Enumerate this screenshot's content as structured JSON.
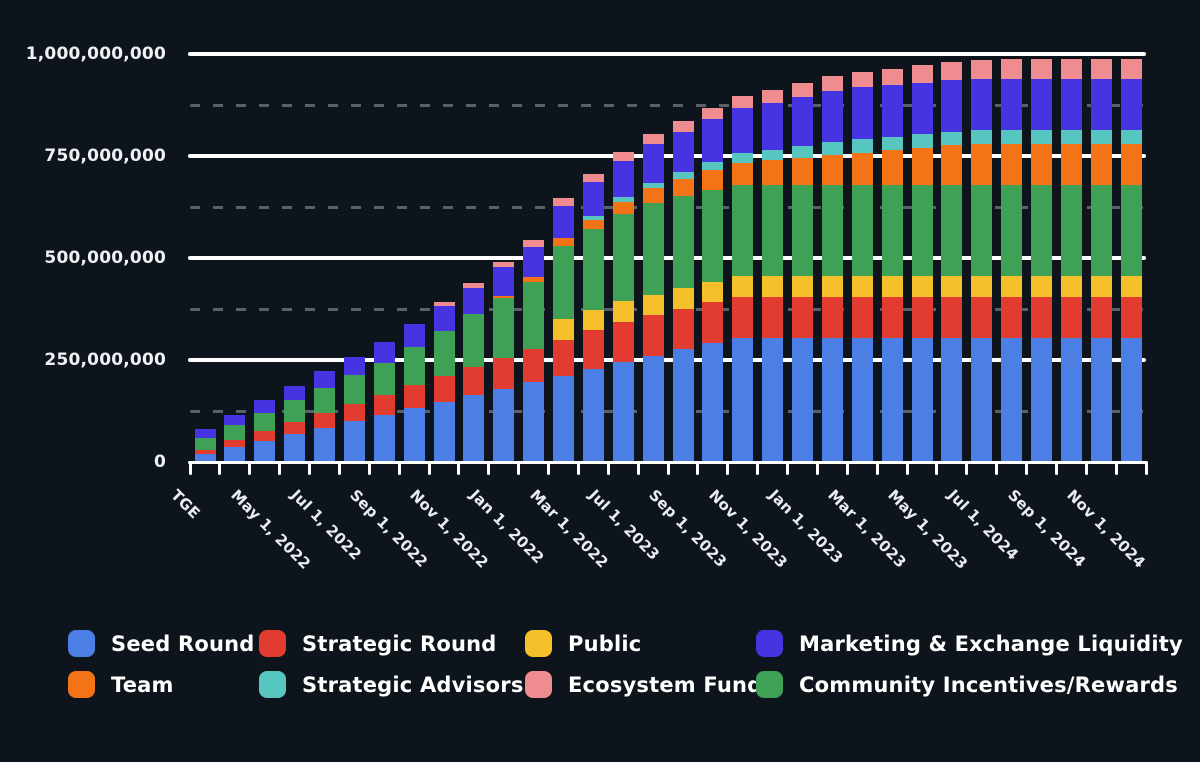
{
  "chart_data": {
    "type": "bar",
    "stacked": true,
    "title": "",
    "unit": "tokens (values in millions)",
    "bar_count": 32,
    "ylim": [
      0,
      1000000000
    ],
    "grid": "horizontal solid lines every 250M, dashed lines every 125M offset",
    "legend_position": "bottom",
    "y_ticks": [
      {
        "label": "0",
        "value_m": 0
      },
      {
        "label": "250,000,000",
        "value_m": 250
      },
      {
        "label": "500,000,000",
        "value_m": 500
      },
      {
        "label": "750,000,000",
        "value_m": 750
      },
      {
        "label": "1,000,000,000",
        "value_m": 1000
      }
    ],
    "y_solid_gridlines_m": [
      250,
      500,
      750,
      1000
    ],
    "y_dashed_gridlines_m": [
      125,
      375,
      625,
      875
    ],
    "x_tick_labels": [
      "TGE",
      "May 1, 2022",
      "Jul 1, 2022",
      "Sep 1, 2022",
      "Nov 1, 2022",
      "Jan 1, 2022",
      "Mar 1, 2022",
      "Jul 1, 2023",
      "Sep 1, 2023",
      "Nov 1, 2023",
      "Jan 1, 2023",
      "Mar 1, 2023",
      "May 1, 2023",
      "Jul 1, 2024",
      "Sep 1, 2024",
      "Nov 1, 2024"
    ],
    "x_label_every_n_bars": 2,
    "series": [
      {
        "name": "Seed Round",
        "color": "#4c7fe6",
        "values_m": [
          20,
          36,
          52,
          68,
          84,
          100,
          116,
          132,
          148,
          164,
          180,
          196,
          212,
          228,
          244,
          260,
          276,
          292,
          305,
          305,
          305,
          305,
          305,
          305,
          305,
          305,
          305,
          305,
          305,
          305,
          305,
          305
        ]
      },
      {
        "name": "Strategic Round",
        "color": "#e23c31",
        "values_m": [
          10,
          17,
          23,
          30,
          36,
          43,
          49,
          56,
          62,
          69,
          75,
          82,
          88,
          95,
          100,
          100,
          100,
          100,
          100,
          100,
          100,
          100,
          100,
          100,
          100,
          100,
          100,
          100,
          100,
          100,
          100,
          100
        ]
      },
      {
        "name": "Public",
        "color": "#f5c02a",
        "values_m": [
          0,
          0,
          0,
          0,
          0,
          0,
          0,
          0,
          0,
          0,
          0,
          0,
          50,
          50,
          50,
          50,
          50,
          50,
          50,
          50,
          50,
          50,
          50,
          50,
          50,
          50,
          50,
          50,
          50,
          50,
          50,
          50
        ]
      },
      {
        "name": "Community Incentives/Rewards",
        "color": "#3fa155",
        "values_m": [
          30,
          38,
          46,
          54,
          62,
          70,
          78,
          95,
          112,
          129,
          146,
          163,
          180,
          197,
          214,
          225,
          225,
          225,
          225,
          225,
          225,
          225,
          225,
          225,
          225,
          225,
          225,
          225,
          225,
          225,
          225,
          225
        ]
      },
      {
        "name": "Team",
        "color": "#f37316",
        "values_m": [
          0,
          0,
          0,
          0,
          0,
          0,
          0,
          0,
          0,
          0,
          6,
          12,
          18,
          24,
          30,
          36,
          42,
          48,
          54,
          60,
          66,
          72,
          78,
          84,
          90,
          96,
          100,
          100,
          100,
          100,
          100,
          100
        ]
      },
      {
        "name": "Strategic Advisors",
        "color": "#57c6c1",
        "values_m": [
          0,
          0,
          0,
          0,
          0,
          0,
          0,
          0,
          0,
          0,
          0,
          0,
          0,
          8,
          11,
          14,
          17,
          20,
          23,
          26,
          29,
          32,
          33,
          33,
          33,
          33,
          33,
          33,
          33,
          33,
          33,
          33
        ]
      },
      {
        "name": "Marketing & Exchange Liquidity",
        "color": "#4633e2",
        "values_m": [
          20,
          25,
          30,
          35,
          40,
          45,
          50,
          55,
          60,
          65,
          70,
          75,
          80,
          85,
          90,
          95,
          100,
          105,
          110,
          115,
          120,
          125,
          127,
          127,
          127,
          127,
          127,
          127,
          127,
          127,
          127,
          127
        ]
      },
      {
        "name": "Ecosystem Fund",
        "color": "#ee8c90",
        "values_m": [
          0,
          0,
          0,
          0,
          0,
          0,
          0,
          0,
          10,
          12,
          14,
          16,
          18,
          20,
          22,
          24,
          26,
          28,
          30,
          32,
          34,
          36,
          38,
          40,
          42,
          44,
          46,
          47,
          47,
          47,
          47,
          47
        ]
      }
    ],
    "legend_rows": [
      [
        "Seed Round",
        "Strategic Round",
        "Public",
        "Marketing & Exchange Liquidity"
      ],
      [
        "Team",
        "Strategic Advisors",
        "Ecosystem Fund",
        "Community Incentives/Rewards"
      ]
    ]
  },
  "colors": {
    "background": "#0d141b",
    "solid_gridline": "#ffffff",
    "dashed_gridline": "#5a6168",
    "axis_text": "#eef1f4",
    "legend_text": "#ffffff"
  }
}
